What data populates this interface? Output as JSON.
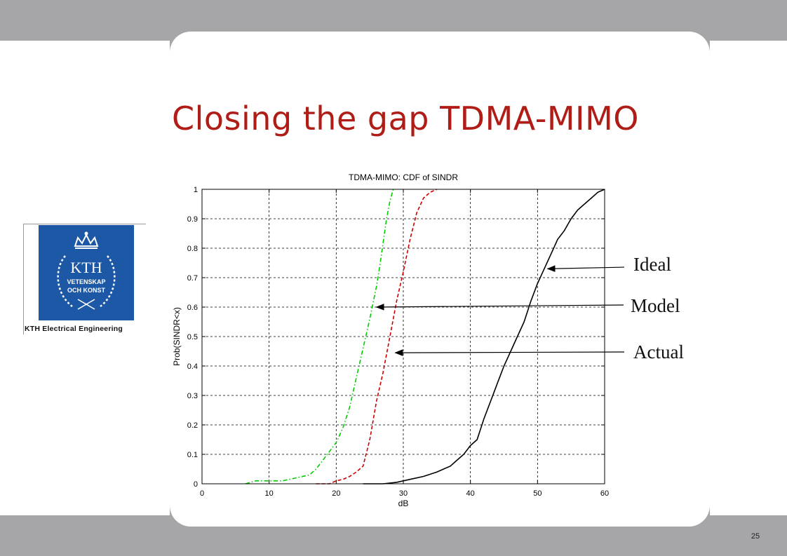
{
  "slide": {
    "title": "Closing the gap TDMA-MIMO",
    "page_number": "25"
  },
  "logo": {
    "name": "KTH",
    "lines": [
      "KTH",
      "VETENSKAP",
      "OCH KONST"
    ],
    "caption": "KTH Electrical Engineering",
    "color": "#1c58a5"
  },
  "annotations": [
    {
      "id": "ideal",
      "label": "Ideal",
      "series": "Ideal",
      "point": [
        51.5,
        0.73
      ]
    },
    {
      "id": "model",
      "label": "Model",
      "series": "Model",
      "point": [
        26.0,
        0.6
      ]
    },
    {
      "id": "actual",
      "label": "Actual",
      "series": "Actual",
      "point": [
        28.8,
        0.445
      ]
    }
  ],
  "chart_data": {
    "type": "line",
    "title": "TDMA-MIMO: CDF of SINDR",
    "xlabel": "dB",
    "ylabel": "Prob(SINDR<x)",
    "xlim": [
      0,
      60
    ],
    "ylim": [
      0,
      1
    ],
    "xticks": [
      "0",
      "10",
      "20",
      "30",
      "40",
      "50",
      "60"
    ],
    "yticks": [
      "0",
      "0.1",
      "0.2",
      "0.3",
      "0.4",
      "0.5",
      "0.6",
      "0.7",
      "0.8",
      "0.9",
      "1"
    ],
    "grid": true,
    "series": [
      {
        "name": "Model",
        "color": "#00cc00",
        "style": "dashdot",
        "x": [
          6.5,
          8,
          10,
          12,
          14,
          16,
          17,
          18,
          19,
          20,
          21,
          22,
          23,
          24,
          25,
          26,
          26.5,
          27,
          27.5,
          28,
          28.5
        ],
        "y": [
          0,
          0.01,
          0.01,
          0.01,
          0.02,
          0.03,
          0.05,
          0.08,
          0.11,
          0.14,
          0.19,
          0.26,
          0.36,
          0.46,
          0.56,
          0.67,
          0.74,
          0.82,
          0.9,
          0.96,
          1.0
        ]
      },
      {
        "name": "Actual",
        "color": "#cc0000",
        "style": "dashed",
        "x": [
          17,
          19,
          20,
          21,
          22,
          23,
          24,
          25,
          26,
          27,
          28,
          29,
          30,
          31,
          32,
          33,
          34,
          35
        ],
        "y": [
          0,
          0.0,
          0.01,
          0.015,
          0.025,
          0.04,
          0.06,
          0.15,
          0.28,
          0.38,
          0.5,
          0.62,
          0.72,
          0.83,
          0.92,
          0.97,
          0.99,
          1.0
        ]
      },
      {
        "name": "Ideal",
        "color": "#000000",
        "style": "solid",
        "x": [
          24,
          27,
          29,
          31,
          33,
          35,
          36,
          37,
          38,
          39,
          40,
          41,
          42,
          43,
          44,
          45,
          46,
          47,
          48,
          49,
          50,
          51,
          52,
          53,
          54,
          55,
          56,
          57,
          58,
          59,
          60
        ],
        "y": [
          0,
          0.0,
          0.005,
          0.015,
          0.025,
          0.04,
          0.05,
          0.06,
          0.08,
          0.1,
          0.13,
          0.15,
          0.22,
          0.28,
          0.34,
          0.4,
          0.45,
          0.5,
          0.55,
          0.62,
          0.68,
          0.73,
          0.78,
          0.83,
          0.86,
          0.9,
          0.93,
          0.95,
          0.97,
          0.99,
          1.0
        ]
      }
    ]
  }
}
